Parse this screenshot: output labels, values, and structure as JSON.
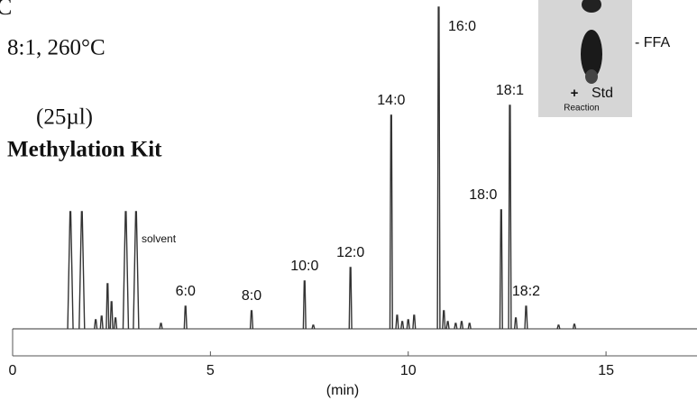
{
  "chart_data": {
    "type": "chromatogram",
    "panel": "C",
    "conditions": "8:1, 260°C",
    "volume": "(25µl)",
    "method": "Methylation Kit",
    "annotation": "solvent",
    "x_label": "(min)",
    "xlim": [
      0,
      17.3
    ],
    "xticks": [
      0,
      5,
      10,
      15
    ],
    "ylim": [
      0,
      365
    ],
    "color": "#333333",
    "inset": {
      "band": "- FFA",
      "lane1": "+",
      "lane2": "Std",
      "lane_label": "Reaction"
    },
    "peaks": [
      {
        "time": 1.46,
        "height": 130
      },
      {
        "time": 1.75,
        "height": 130
      },
      {
        "time": 2.1,
        "height": 10
      },
      {
        "time": 2.25,
        "height": 14
      },
      {
        "time": 2.4,
        "height": 50
      },
      {
        "time": 2.5,
        "height": 30
      },
      {
        "time": 2.6,
        "height": 12
      },
      {
        "time": 2.86,
        "height": 130
      },
      {
        "time": 3.12,
        "height": 130
      },
      {
        "time": 3.75,
        "height": 6
      },
      {
        "time": 4.37,
        "height": 25,
        "label": "6:0"
      },
      {
        "time": 6.04,
        "height": 20,
        "label": "8:0"
      },
      {
        "time": 7.38,
        "height": 53,
        "label": "10:0"
      },
      {
        "time": 7.6,
        "height": 4
      },
      {
        "time": 8.54,
        "height": 68,
        "label": "12:0"
      },
      {
        "time": 9.57,
        "height": 237,
        "label": "14:0"
      },
      {
        "time": 9.72,
        "height": 15
      },
      {
        "time": 9.85,
        "height": 8
      },
      {
        "time": 10.0,
        "height": 10
      },
      {
        "time": 10.15,
        "height": 15
      },
      {
        "time": 10.77,
        "height": 357,
        "label": "16:0"
      },
      {
        "time": 10.9,
        "height": 20
      },
      {
        "time": 11.0,
        "height": 8
      },
      {
        "time": 11.2,
        "height": 6
      },
      {
        "time": 11.35,
        "height": 8
      },
      {
        "time": 11.55,
        "height": 6
      },
      {
        "time": 12.35,
        "height": 132,
        "label": "18:0"
      },
      {
        "time": 12.57,
        "height": 248,
        "label": "18:1"
      },
      {
        "time": 12.72,
        "height": 12
      },
      {
        "time": 12.98,
        "height": 25,
        "label": "18:2"
      },
      {
        "time": 13.8,
        "height": 4
      },
      {
        "time": 14.2,
        "height": 5
      }
    ]
  }
}
